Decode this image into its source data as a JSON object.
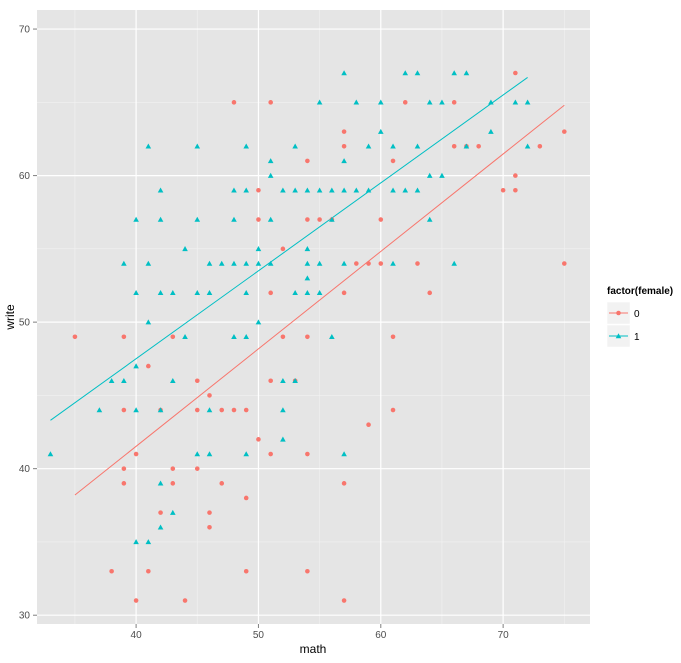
{
  "chart_data": {
    "type": "scatter",
    "title": "",
    "xlabel": "math",
    "ylabel": "write",
    "xlim": [
      31.9,
      77.1
    ],
    "ylim": [
      29.4,
      71.3
    ],
    "xticks": [
      40,
      50,
      60,
      70
    ],
    "yticks": [
      30,
      40,
      50,
      60,
      70
    ],
    "legend": {
      "title": "factor(female)",
      "position": "right"
    },
    "series": [
      {
        "name": "0",
        "color": "#F8766D",
        "marker": "circle",
        "points": [
          [
            35,
            49
          ],
          [
            38,
            33
          ],
          [
            39,
            49
          ],
          [
            39,
            44
          ],
          [
            39,
            40
          ],
          [
            39,
            39
          ],
          [
            40,
            41
          ],
          [
            40,
            31
          ],
          [
            41,
            47
          ],
          [
            41,
            33
          ],
          [
            42,
            44
          ],
          [
            42,
            37
          ],
          [
            43,
            49
          ],
          [
            43,
            40
          ],
          [
            43,
            39
          ],
          [
            44,
            31
          ],
          [
            45,
            46
          ],
          [
            45,
            44
          ],
          [
            45,
            40
          ],
          [
            46,
            45
          ],
          [
            46,
            37
          ],
          [
            46,
            36
          ],
          [
            47,
            44
          ],
          [
            47,
            39
          ],
          [
            48,
            65
          ],
          [
            48,
            44
          ],
          [
            49,
            44
          ],
          [
            49,
            38
          ],
          [
            49,
            33
          ],
          [
            50,
            59
          ],
          [
            50,
            57
          ],
          [
            50,
            42
          ],
          [
            51,
            65
          ],
          [
            51,
            52
          ],
          [
            51,
            46
          ],
          [
            51,
            41
          ],
          [
            52,
            55
          ],
          [
            52,
            49
          ],
          [
            53,
            46
          ],
          [
            54,
            61
          ],
          [
            54,
            57
          ],
          [
            54,
            49
          ],
          [
            54,
            41
          ],
          [
            54,
            33
          ],
          [
            55,
            57
          ],
          [
            56,
            57
          ],
          [
            57,
            63
          ],
          [
            57,
            62
          ],
          [
            57,
            52
          ],
          [
            57,
            39
          ],
          [
            57,
            31
          ],
          [
            58,
            54
          ],
          [
            59,
            54
          ],
          [
            59,
            43
          ],
          [
            60,
            57
          ],
          [
            60,
            54
          ],
          [
            61,
            61
          ],
          [
            61,
            49
          ],
          [
            61,
            44
          ],
          [
            62,
            65
          ],
          [
            63,
            54
          ],
          [
            64,
            52
          ],
          [
            66,
            65
          ],
          [
            66,
            62
          ],
          [
            67,
            62
          ],
          [
            68,
            62
          ],
          [
            70,
            59
          ],
          [
            71,
            67
          ],
          [
            71,
            60
          ],
          [
            71,
            59
          ],
          [
            73,
            62
          ],
          [
            75,
            63
          ],
          [
            75,
            54
          ]
        ],
        "fit": {
          "x": [
            35,
            75
          ],
          "y": [
            38.2,
            64.8
          ]
        }
      },
      {
        "name": "1",
        "color": "#00BFC4",
        "marker": "triangle",
        "points": [
          [
            33,
            41
          ],
          [
            37,
            44
          ],
          [
            38,
            46
          ],
          [
            39,
            54
          ],
          [
            39,
            46
          ],
          [
            40,
            57
          ],
          [
            40,
            52
          ],
          [
            40,
            47
          ],
          [
            40,
            44
          ],
          [
            40,
            35
          ],
          [
            41,
            62
          ],
          [
            41,
            54
          ],
          [
            41,
            50
          ],
          [
            41,
            35
          ],
          [
            42,
            59
          ],
          [
            42,
            57
          ],
          [
            42,
            52
          ],
          [
            42,
            44
          ],
          [
            42,
            39
          ],
          [
            42,
            36
          ],
          [
            43,
            52
          ],
          [
            43,
            46
          ],
          [
            43,
            37
          ],
          [
            44,
            55
          ],
          [
            44,
            49
          ],
          [
            45,
            62
          ],
          [
            45,
            57
          ],
          [
            45,
            52
          ],
          [
            45,
            41
          ],
          [
            46,
            54
          ],
          [
            46,
            52
          ],
          [
            46,
            44
          ],
          [
            46,
            41
          ],
          [
            47,
            54
          ],
          [
            48,
            59
          ],
          [
            48,
            57
          ],
          [
            48,
            54
          ],
          [
            48,
            49
          ],
          [
            49,
            62
          ],
          [
            49,
            59
          ],
          [
            49,
            54
          ],
          [
            49,
            52
          ],
          [
            49,
            49
          ],
          [
            49,
            41
          ],
          [
            50,
            55
          ],
          [
            50,
            54
          ],
          [
            50,
            50
          ],
          [
            51,
            61
          ],
          [
            51,
            60
          ],
          [
            51,
            57
          ],
          [
            51,
            54
          ],
          [
            52,
            59
          ],
          [
            52,
            46
          ],
          [
            52,
            44
          ],
          [
            52,
            42
          ],
          [
            53,
            62
          ],
          [
            53,
            59
          ],
          [
            53,
            52
          ],
          [
            53,
            46
          ],
          [
            54,
            59
          ],
          [
            54,
            55
          ],
          [
            54,
            54
          ],
          [
            54,
            53
          ],
          [
            54,
            52
          ],
          [
            55,
            65
          ],
          [
            55,
            59
          ],
          [
            55,
            54
          ],
          [
            55,
            52
          ],
          [
            56,
            59
          ],
          [
            56,
            57
          ],
          [
            56,
            49
          ],
          [
            57,
            67
          ],
          [
            57,
            61
          ],
          [
            57,
            59
          ],
          [
            57,
            54
          ],
          [
            57,
            41
          ],
          [
            58,
            65
          ],
          [
            58,
            59
          ],
          [
            59,
            62
          ],
          [
            59,
            59
          ],
          [
            60,
            65
          ],
          [
            60,
            63
          ],
          [
            61,
            62
          ],
          [
            61,
            59
          ],
          [
            61,
            54
          ],
          [
            62,
            67
          ],
          [
            62,
            59
          ],
          [
            63,
            67
          ],
          [
            63,
            62
          ],
          [
            63,
            59
          ],
          [
            64,
            65
          ],
          [
            64,
            60
          ],
          [
            64,
            57
          ],
          [
            65,
            65
          ],
          [
            65,
            60
          ],
          [
            66,
            67
          ],
          [
            66,
            54
          ],
          [
            67,
            67
          ],
          [
            67,
            62
          ],
          [
            69,
            65
          ],
          [
            69,
            63
          ],
          [
            71,
            65
          ],
          [
            72,
            65
          ],
          [
            72,
            62
          ]
        ],
        "fit": {
          "x": [
            33,
            72
          ],
          "y": [
            43.3,
            66.7
          ]
        }
      }
    ]
  }
}
